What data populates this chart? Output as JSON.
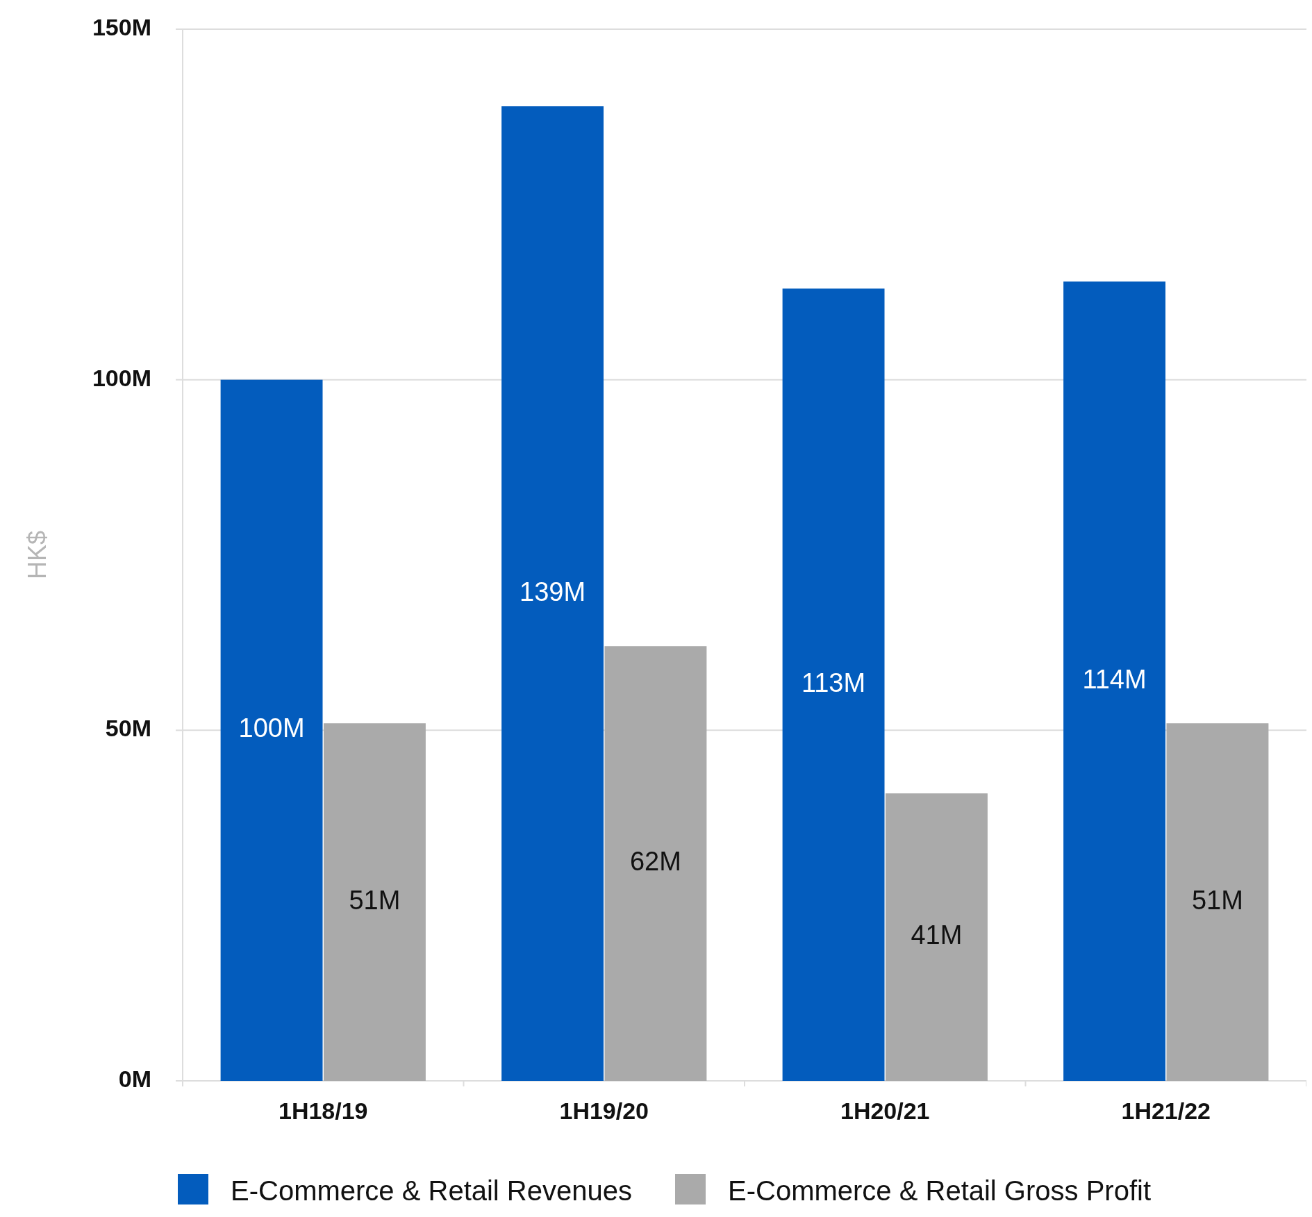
{
  "chart_data": {
    "type": "bar",
    "ylabel": "HK$",
    "categories": [
      "1H18/19",
      "1H19/20",
      "1H20/21",
      "1H21/22"
    ],
    "series": [
      {
        "name": "E-Commerce & Retail Revenues",
        "color": "#035cbd",
        "values": [
          100,
          139,
          113,
          114
        ],
        "value_labels": [
          "100M",
          "139M",
          "113M",
          "114M"
        ]
      },
      {
        "name": "E-Commerce & Retail Gross Profit",
        "color": "#aaaaaa",
        "values": [
          51,
          62,
          41,
          51
        ],
        "value_labels": [
          "51M",
          "62M",
          "41M",
          "51M"
        ]
      }
    ],
    "ylim": [
      0,
      150
    ],
    "yticks": [
      {
        "value": 0,
        "label": "0M"
      },
      {
        "value": 50,
        "label": "50M"
      },
      {
        "value": 100,
        "label": "100M"
      },
      {
        "value": 150,
        "label": "150M"
      }
    ],
    "grid": "y",
    "legend": "bottom"
  }
}
